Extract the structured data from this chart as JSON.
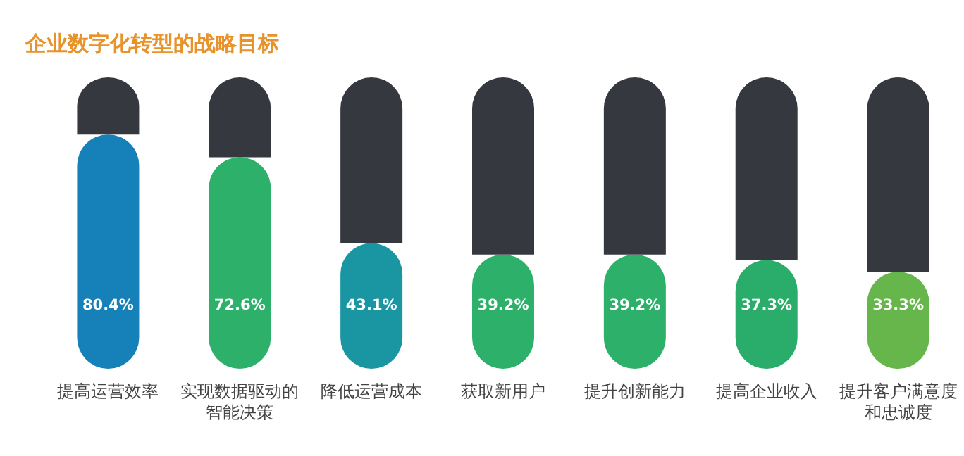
{
  "chart_data": {
    "type": "bar",
    "title": "企业数字化转型的战略目标",
    "stacked": true,
    "categories": [
      "提高运营效率",
      "实现数据驱动的智能决策",
      "降低运营成本",
      "获取新用户",
      "提升创新能力",
      "提高企业收入",
      "提升客户满意度和忠诚度"
    ],
    "series": [
      {
        "colors": [
          "#1681b9",
          "#2db06a",
          "#1a96a3",
          "#2db06a",
          "#2db06a",
          "#2aad6a",
          "#66b64c"
        ],
        "values": [
          80.4,
          72.6,
          43.1,
          39.2,
          39.2,
          37.3,
          33.3
        ],
        "value_labels": [
          "80.4%",
          "72.6%",
          "43.1%",
          "39.2%",
          "39.2%",
          "37.3%",
          "33.3%"
        ]
      },
      {
        "color": "#35383e",
        "values": [
          19.6,
          27.4,
          56.9,
          60.8,
          60.8,
          62.7,
          66.7
        ]
      }
    ],
    "ylim": [
      0,
      100
    ]
  }
}
